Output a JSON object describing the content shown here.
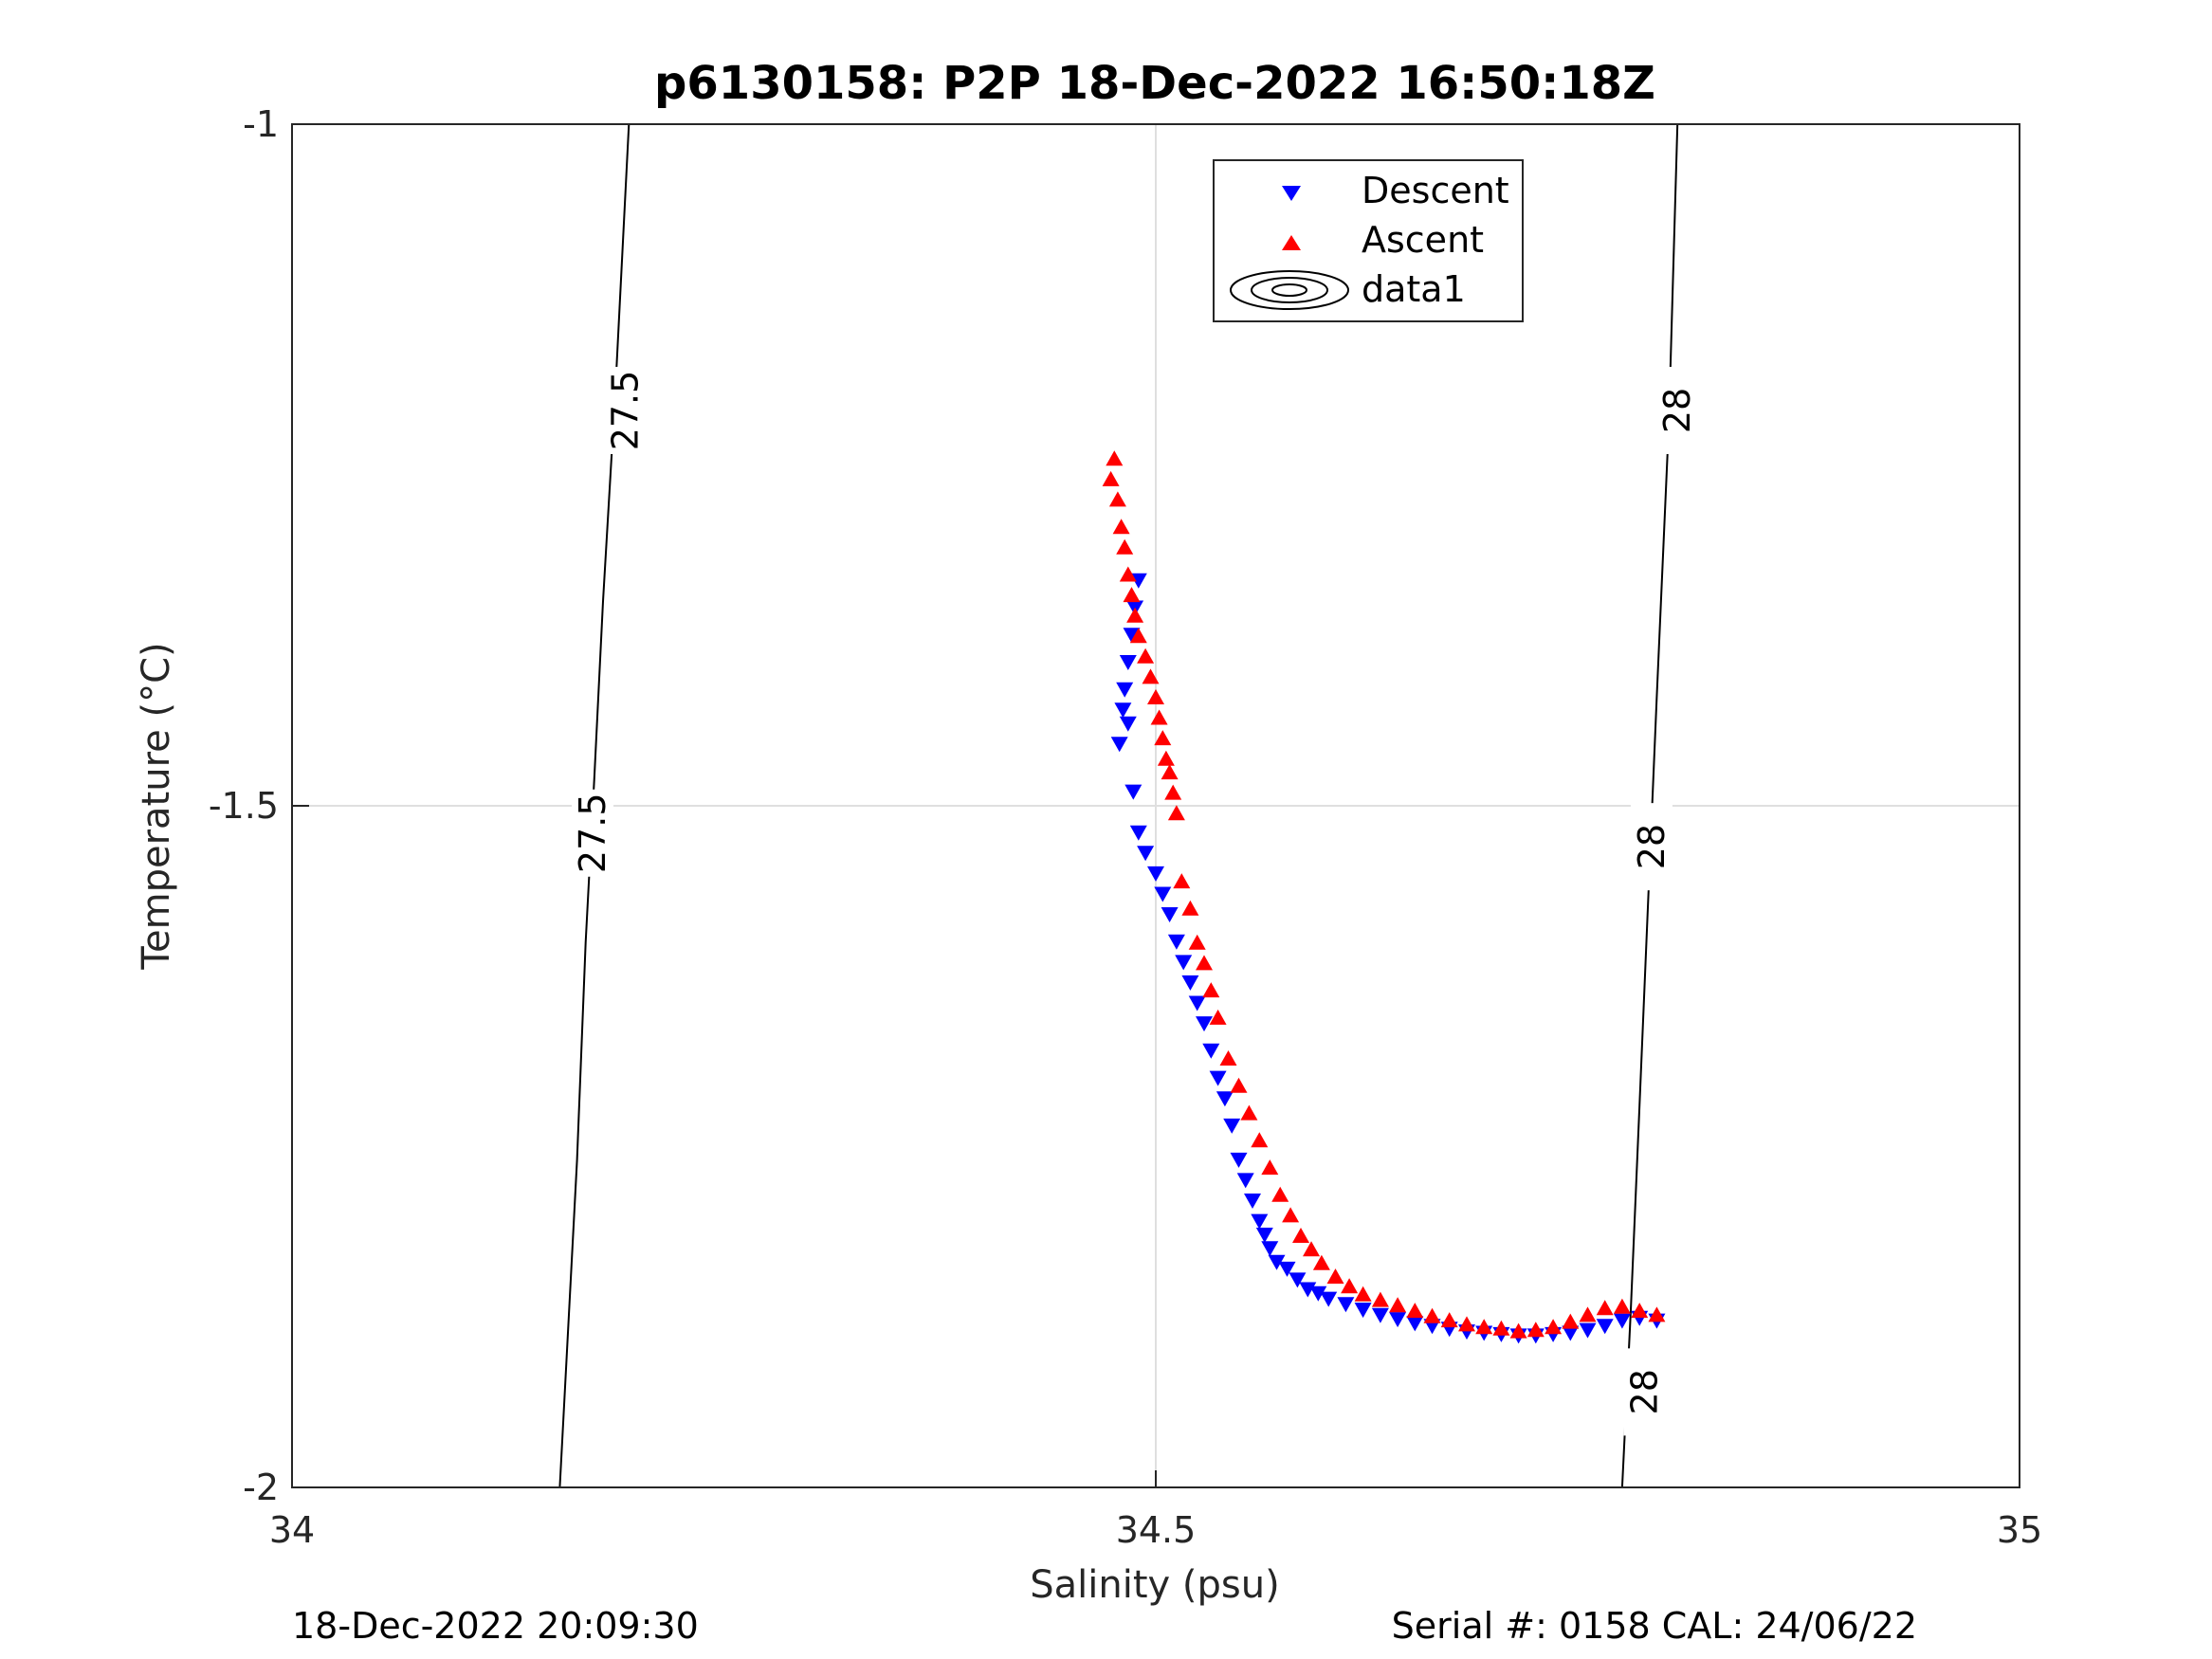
{
  "chart_data": {
    "type": "scatter",
    "title": "p6130158: P2P 18-Dec-2022 16:50:18Z",
    "xlabel": "Salinity (psu)",
    "ylabel": "Temperature (°C)",
    "xlim": [
      34,
      35
    ],
    "ylim": [
      -2,
      -1
    ],
    "x_ticks": [
      34,
      34.5,
      35
    ],
    "x_tick_labels": [
      "34",
      "34.5",
      "35"
    ],
    "y_ticks": [
      -1,
      -1.5,
      -2
    ],
    "y_tick_labels": [
      "-1",
      "-1.5",
      "-2"
    ],
    "grid": true,
    "legend_position": "top-center",
    "series": [
      {
        "name": "Descent",
        "marker": "triangle-down",
        "color": "#0000ff",
        "points": [
          [
            34.49,
            -1.335
          ],
          [
            34.488,
            -1.355
          ],
          [
            34.486,
            -1.375
          ],
          [
            34.484,
            -1.395
          ],
          [
            34.482,
            -1.415
          ],
          [
            34.481,
            -1.43
          ],
          [
            34.479,
            -1.455
          ],
          [
            34.484,
            -1.44
          ],
          [
            34.487,
            -1.49
          ],
          [
            34.49,
            -1.52
          ],
          [
            34.494,
            -1.535
          ],
          [
            34.5,
            -1.55
          ],
          [
            34.504,
            -1.565
          ],
          [
            34.508,
            -1.58
          ],
          [
            34.512,
            -1.6
          ],
          [
            34.516,
            -1.615
          ],
          [
            34.52,
            -1.63
          ],
          [
            34.524,
            -1.645
          ],
          [
            34.528,
            -1.66
          ],
          [
            34.532,
            -1.68
          ],
          [
            34.536,
            -1.7
          ],
          [
            34.54,
            -1.715
          ],
          [
            34.544,
            -1.735
          ],
          [
            34.548,
            -1.76
          ],
          [
            34.552,
            -1.775
          ],
          [
            34.556,
            -1.79
          ],
          [
            34.56,
            -1.805
          ],
          [
            34.563,
            -1.815
          ],
          [
            34.566,
            -1.825
          ],
          [
            34.57,
            -1.835
          ],
          [
            34.576,
            -1.84
          ],
          [
            34.582,
            -1.848
          ],
          [
            34.588,
            -1.855
          ],
          [
            34.594,
            -1.858
          ],
          [
            34.6,
            -1.862
          ],
          [
            34.61,
            -1.866
          ],
          [
            34.62,
            -1.87
          ],
          [
            34.63,
            -1.874
          ],
          [
            34.64,
            -1.877
          ],
          [
            34.65,
            -1.88
          ],
          [
            34.66,
            -1.882
          ],
          [
            34.67,
            -1.884
          ],
          [
            34.68,
            -1.886
          ],
          [
            34.69,
            -1.887
          ],
          [
            34.7,
            -1.888
          ],
          [
            34.71,
            -1.889
          ],
          [
            34.72,
            -1.889
          ],
          [
            34.73,
            -1.888
          ],
          [
            34.74,
            -1.887
          ],
          [
            34.75,
            -1.885
          ],
          [
            34.76,
            -1.882
          ],
          [
            34.77,
            -1.878
          ],
          [
            34.78,
            -1.876
          ],
          [
            34.79,
            -1.878
          ]
        ]
      },
      {
        "name": "Ascent",
        "marker": "triangle-up",
        "color": "#ff0000",
        "points": [
          [
            34.476,
            -1.245
          ],
          [
            34.474,
            -1.26
          ],
          [
            34.478,
            -1.275
          ],
          [
            34.48,
            -1.295
          ],
          [
            34.482,
            -1.31
          ],
          [
            34.484,
            -1.33
          ],
          [
            34.486,
            -1.345
          ],
          [
            34.488,
            -1.36
          ],
          [
            34.49,
            -1.375
          ],
          [
            34.494,
            -1.39
          ],
          [
            34.497,
            -1.405
          ],
          [
            34.5,
            -1.42
          ],
          [
            34.502,
            -1.435
          ],
          [
            34.504,
            -1.45
          ],
          [
            34.506,
            -1.465
          ],
          [
            34.508,
            -1.475
          ],
          [
            34.51,
            -1.49
          ],
          [
            34.512,
            -1.505
          ],
          [
            34.515,
            -1.555
          ],
          [
            34.52,
            -1.575
          ],
          [
            34.524,
            -1.6
          ],
          [
            34.528,
            -1.615
          ],
          [
            34.532,
            -1.635
          ],
          [
            34.536,
            -1.655
          ],
          [
            34.542,
            -1.685
          ],
          [
            34.548,
            -1.705
          ],
          [
            34.554,
            -1.725
          ],
          [
            34.56,
            -1.745
          ],
          [
            34.566,
            -1.765
          ],
          [
            34.572,
            -1.785
          ],
          [
            34.578,
            -1.8
          ],
          [
            34.584,
            -1.815
          ],
          [
            34.59,
            -1.825
          ],
          [
            34.596,
            -1.835
          ],
          [
            34.604,
            -1.845
          ],
          [
            34.612,
            -1.852
          ],
          [
            34.62,
            -1.858
          ],
          [
            34.63,
            -1.862
          ],
          [
            34.64,
            -1.866
          ],
          [
            34.65,
            -1.87
          ],
          [
            34.66,
            -1.874
          ],
          [
            34.67,
            -1.877
          ],
          [
            34.68,
            -1.88
          ],
          [
            34.69,
            -1.882
          ],
          [
            34.7,
            -1.883
          ],
          [
            34.71,
            -1.885
          ],
          [
            34.72,
            -1.884
          ],
          [
            34.73,
            -1.882
          ],
          [
            34.74,
            -1.878
          ],
          [
            34.75,
            -1.873
          ],
          [
            34.76,
            -1.868
          ],
          [
            34.77,
            -1.867
          ],
          [
            34.78,
            -1.87
          ],
          [
            34.79,
            -1.873
          ]
        ]
      }
    ],
    "contours": [
      {
        "label": "27.5",
        "path": [
          [
            34.155,
            -2.0
          ],
          [
            34.165,
            -1.76
          ],
          [
            34.17,
            -1.6
          ],
          [
            34.175,
            -1.48
          ],
          [
            34.18,
            -1.35
          ],
          [
            34.187,
            -1.2
          ],
          [
            34.195,
            -1.0
          ]
        ],
        "label_positions": [
          [
            34.174,
            -1.52
          ],
          [
            34.193,
            -1.21
          ]
        ]
      },
      {
        "label": "28",
        "path": [
          [
            34.77,
            -2.0
          ],
          [
            34.775,
            -1.87
          ],
          [
            34.78,
            -1.72
          ],
          [
            34.786,
            -1.54
          ],
          [
            34.79,
            -1.42
          ],
          [
            34.797,
            -1.22
          ],
          [
            34.802,
            -1.0
          ]
        ],
        "label_positions": [
          [
            34.783,
            -1.93
          ],
          [
            34.787,
            -1.53
          ],
          [
            34.802,
            -1.21
          ]
        ]
      }
    ],
    "legend": [
      {
        "label": "Descent",
        "marker": "triangle-down",
        "color": "#0000ff"
      },
      {
        "label": "Ascent",
        "marker": "triangle-up",
        "color": "#ff0000"
      },
      {
        "label": "data1",
        "marker": "contour",
        "color": "#000000"
      }
    ]
  },
  "footer": {
    "left": "18-Dec-2022 20:09:30",
    "right": "Serial #: 0158  CAL: 24/06/22"
  }
}
